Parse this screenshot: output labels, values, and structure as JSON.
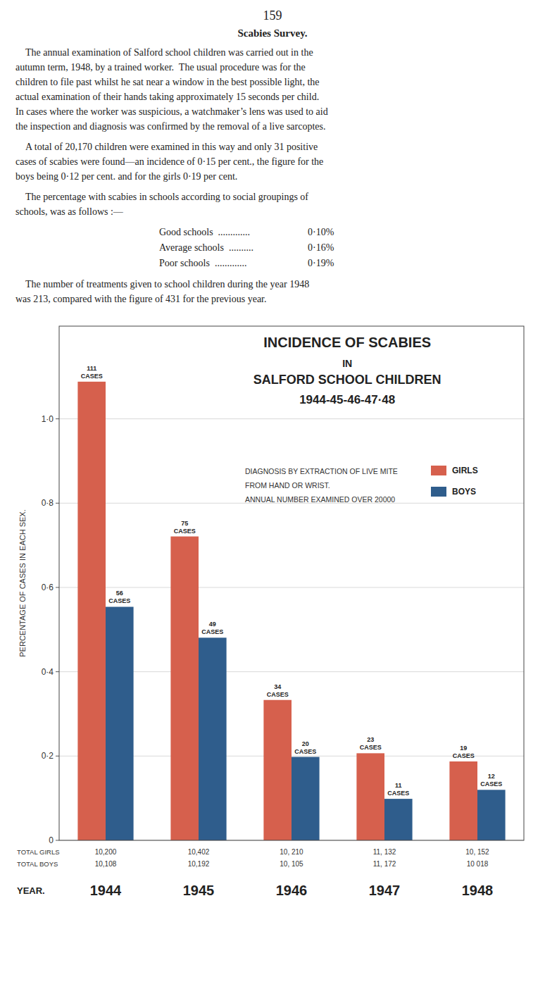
{
  "page": {
    "page_number": "159",
    "page_title": "Scabies Survey.",
    "paragraphs_before_table": [
      "    The annual examination of Salford school children was carried out in the\nautumn term, 1948, by a trained worker.  The usual procedure was for the\nchildren to file past whilst he sat near a window in the best possible light, the\nactual examination of their hands taking approximately 15 seconds per child.\nIn cases where the worker was suspicious, a watchmaker’s lens was used to aid\nthe inspection and diagnosis was confirmed by the removal of a live sarcoptes.",
      "    A total of 20,170 children were examined in this way and only 31 positive\ncases of scabies were found—an incidence of 0·15 per cent., the figure for the\nboys being 0·12 per cent. and for the girls 0·19 per cent.",
      "    The percentage with scabies in schools according to social groupings of\nschools, was as follows :—"
    ],
    "school_rows": [
      [
        "Good schools  .............",
        "0·10%"
      ],
      [
        "Average schools  ..........",
        "0·16%"
      ],
      [
        "Poor schools  .............",
        "0·19%"
      ]
    ],
    "paragraphs_after_table": [
      "    The number of treatments given to school children during the year 1948\nwas 213, compared with the figure of 431 for the previous year."
    ]
  },
  "chart_data": {
    "type": "bar",
    "title": "INCIDENCE OF SCABIES\nIN\nSALFORD SCHOOL CHILDREN\n1944-45-46-47·48",
    "subtitle": "DIAGNOSIS BY EXTRACTION OF LIVE MITE\nFROM HAND OR WRIST.\nANNUAL NUMBER EXAMINED OVER 20000",
    "categories": [
      "1944",
      "1945",
      "1946",
      "1947",
      "1948"
    ],
    "xlabel": "YEAR.",
    "ylabel": "PERCENTAGE OF CASES IN EACH SEX.",
    "ylim": [
      0,
      1.22
    ],
    "yticks": [
      0,
      {
        "value": 0.2,
        "label": "0·2"
      },
      {
        "value": 0.4,
        "label": "0·4"
      },
      {
        "value": 0.6,
        "label": "0·6"
      },
      {
        "value": 0.8,
        "label": "0·8"
      },
      {
        "value": 1.0,
        "label": "1·0"
      }
    ],
    "grid": true,
    "legend": "right",
    "series": [
      {
        "name": "GIRLS",
        "color": "#d6604d",
        "values": [
          1.088235294117647,
          0.721015189386656,
          0.333006856023506,
          0.2066115702479339,
          0.18715524034673
        ],
        "case_labels": [
          "111\nCASES",
          "75\nCASES",
          "34\nCASES",
          "23\nCASES",
          "19\nCASES"
        ],
        "total_row_label": "TOTAL GIRLS",
        "total_labels": [
          "10,200",
          "10,402",
          "10, 210",
          "11, 132",
          "10, 152"
        ]
      },
      {
        "name": "BOYS",
        "color": "#2f5d8c",
        "values": [
          0.554016620498615,
          0.480769230769231,
          0.197921820880752,
          0.0984604368063014,
          0.119784388101417
        ],
        "case_labels": [
          "56\nCASES",
          "49\nCASES",
          "20\nCASES",
          "11\nCASES",
          "12\nCASES"
        ],
        "total_row_label": "TOTAL BOYS",
        "total_labels": [
          "10,108",
          "10,192",
          "10, 105",
          "11, 172",
          "10 018"
        ]
      }
    ]
  }
}
